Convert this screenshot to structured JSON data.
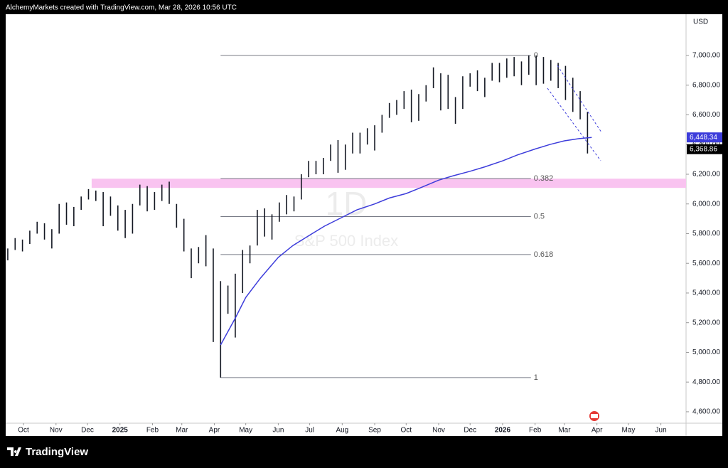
{
  "chart_data": {
    "type": "ohlc",
    "header": "AlchemyMarkets created with TradingView.com, Mar 28, 2026 10:56 UTC",
    "interval": "1D",
    "symbol": "S&P 500 Index",
    "currency": "USD",
    "brand": "TradingView",
    "bar_color": "#131722",
    "dates": [
      "2024-09-16",
      "2024-09-23",
      "2024-09-30",
      "2024-10-07",
      "2024-10-14",
      "2024-10-21",
      "2024-10-28",
      "2024-11-04",
      "2024-11-11",
      "2024-11-18",
      "2024-11-25",
      "2024-12-02",
      "2024-12-09",
      "2024-12-16",
      "2024-12-23",
      "2024-12-30",
      "2025-01-06",
      "2025-01-13",
      "2025-01-20",
      "2025-01-27",
      "2025-02-03",
      "2025-02-10",
      "2025-02-17",
      "2025-02-24",
      "2025-03-03",
      "2025-03-10",
      "2025-03-17",
      "2025-03-24",
      "2025-03-31",
      "2025-04-07",
      "2025-04-14",
      "2025-04-21",
      "2025-04-28",
      "2025-05-05",
      "2025-05-12",
      "2025-05-19",
      "2025-05-26",
      "2025-06-02",
      "2025-06-09",
      "2025-06-16",
      "2025-06-23",
      "2025-06-30",
      "2025-07-07",
      "2025-07-14",
      "2025-07-21",
      "2025-07-28",
      "2025-08-04",
      "2025-08-11",
      "2025-08-18",
      "2025-08-25",
      "2025-09-01",
      "2025-09-08",
      "2025-09-15",
      "2025-09-22",
      "2025-09-29",
      "2025-10-06",
      "2025-10-13",
      "2025-10-20",
      "2025-10-27",
      "2025-11-03",
      "2025-11-10",
      "2025-11-17",
      "2025-11-24",
      "2025-12-01",
      "2025-12-08",
      "2025-12-15",
      "2025-12-22",
      "2025-12-29",
      "2026-01-05",
      "2026-01-12",
      "2026-01-19",
      "2026-01-26",
      "2026-02-02",
      "2026-02-09",
      "2026-02-16",
      "2026-02-23",
      "2026-03-02",
      "2026-03-09",
      "2026-03-16",
      "2026-03-23"
    ],
    "high": [
      5700,
      5770,
      5760,
      5820,
      5880,
      5870,
      5830,
      6000,
      6010,
      5980,
      6050,
      6100,
      6090,
      6080,
      6050,
      5990,
      5960,
      6000,
      6130,
      6120,
      6080,
      6130,
      6150,
      6000,
      5900,
      5700,
      5710,
      5790,
      5700,
      5480,
      5450,
      5530,
      5690,
      5720,
      5960,
      5970,
      5930,
      6010,
      6060,
      6050,
      6200,
      6290,
      6290,
      6310,
      6400,
      6430,
      6400,
      6480,
      6480,
      6510,
      6530,
      6600,
      6680,
      6700,
      6760,
      6770,
      6740,
      6800,
      6920,
      6880,
      6870,
      6720,
      6860,
      6880,
      6900,
      6850,
      6950,
      6950,
      6980,
      6990,
      6960,
      7000,
      7000,
      6990,
      6970,
      6950,
      6930,
      6850,
      6760,
      6620
    ],
    "low": [
      5620,
      5690,
      5680,
      5730,
      5800,
      5760,
      5700,
      5800,
      5860,
      5850,
      5960,
      6030,
      6020,
      5850,
      5920,
      5820,
      5770,
      5800,
      5990,
      5950,
      5960,
      6020,
      6000,
      5840,
      5680,
      5500,
      5600,
      5580,
      5070,
      4830,
      5260,
      5100,
      5400,
      5600,
      5720,
      5780,
      5760,
      5880,
      5930,
      5950,
      6030,
      6180,
      6200,
      6200,
      6290,
      6210,
      6230,
      6340,
      6340,
      6400,
      6360,
      6480,
      6580,
      6600,
      6640,
      6550,
      6560,
      6690,
      6780,
      6630,
      6640,
      6540,
      6640,
      6790,
      6760,
      6720,
      6830,
      6820,
      6850,
      6860,
      6800,
      6870,
      6800,
      6810,
      6830,
      6780,
      6700,
      6620,
      6570,
      6340
    ],
    "close_label": {
      "value": 6368.86,
      "label": "6,368.86"
    },
    "ma": {
      "color": "#3d3ddb",
      "dates": [
        "2025-04-07",
        "2025-04-21",
        "2025-05-01",
        "2025-05-15",
        "2025-06-01",
        "2025-06-15",
        "2025-07-01",
        "2025-07-15",
        "2025-08-01",
        "2025-08-15",
        "2025-09-01",
        "2025-09-15",
        "2025-10-01",
        "2025-10-15",
        "2025-11-01",
        "2025-11-15",
        "2025-12-01",
        "2025-12-15",
        "2026-01-01",
        "2026-01-15",
        "2026-02-01",
        "2026-02-15",
        "2026-03-01",
        "2026-03-15",
        "2026-03-27"
      ],
      "values": [
        5050,
        5230,
        5370,
        5500,
        5640,
        5720,
        5790,
        5850,
        5910,
        5960,
        6000,
        6040,
        6070,
        6110,
        6160,
        6190,
        6220,
        6250,
        6290,
        6330,
        6370,
        6400,
        6425,
        6440,
        6448.34
      ],
      "last_label": "6,448.34"
    },
    "fib": {
      "start": "2025-04-07",
      "end": "2026-01-28",
      "levels": [
        {
          "label": "0",
          "value": 7000
        },
        {
          "label": "0.382",
          "value": 6171
        },
        {
          "label": "0.5",
          "value": 5915
        },
        {
          "label": "0.618",
          "value": 5659
        },
        {
          "label": "1",
          "value": 4830
        }
      ]
    },
    "zone": {
      "start": "2024-12-05",
      "low": 6108,
      "high": 6170,
      "color": "#f9c3f0"
    },
    "xlim": [
      "2024-09-14",
      "2026-06-25"
    ],
    "xticks": [
      {
        "value": "2024-10-01",
        "label": "Oct"
      },
      {
        "value": "2024-11-01",
        "label": "Nov"
      },
      {
        "value": "2024-12-01",
        "label": "Dec"
      },
      {
        "value": "2025-01-01",
        "label": "2025"
      },
      {
        "value": "2025-02-01",
        "label": "Feb"
      },
      {
        "value": "2025-03-01",
        "label": "Mar"
      },
      {
        "value": "2025-04-01",
        "label": "Apr"
      },
      {
        "value": "2025-05-01",
        "label": "May"
      },
      {
        "value": "2025-06-01",
        "label": "Jun"
      },
      {
        "value": "2025-07-01",
        "label": "Jul"
      },
      {
        "value": "2025-08-01",
        "label": "Aug"
      },
      {
        "value": "2025-09-01",
        "label": "Sep"
      },
      {
        "value": "2025-10-01",
        "label": "Oct"
      },
      {
        "value": "2025-11-01",
        "label": "Nov"
      },
      {
        "value": "2025-12-01",
        "label": "Dec"
      },
      {
        "value": "2026-01-01",
        "label": "2026"
      },
      {
        "value": "2026-02-01",
        "label": "Feb"
      },
      {
        "value": "2026-03-01",
        "label": "Mar"
      },
      {
        "value": "2026-04-01",
        "label": "Apr"
      },
      {
        "value": "2026-05-01",
        "label": "May"
      },
      {
        "value": "2026-06-01",
        "label": "Jun"
      }
    ],
    "ylim": [
      4523,
      7278
    ],
    "yticks": [
      {
        "value": 4600,
        "label": "4,600.00"
      },
      {
        "value": 4800,
        "label": "4,800.00"
      },
      {
        "value": 5000,
        "label": "5,000.00"
      },
      {
        "value": 5200,
        "label": "5,200.00"
      },
      {
        "value": 5400,
        "label": "5,400.00"
      },
      {
        "value": 5600,
        "label": "5,600.00"
      },
      {
        "value": 5800,
        "label": "5,800.00"
      },
      {
        "value": 6000,
        "label": "6,000.00"
      },
      {
        "value": 6200,
        "label": "6,200.00"
      },
      {
        "value": 6400,
        "label": "6,400.00"
      },
      {
        "value": 6600,
        "label": "6,600.00"
      },
      {
        "value": 6800,
        "label": "6,800.00"
      },
      {
        "value": 7000,
        "label": "7,000.00"
      }
    ]
  }
}
